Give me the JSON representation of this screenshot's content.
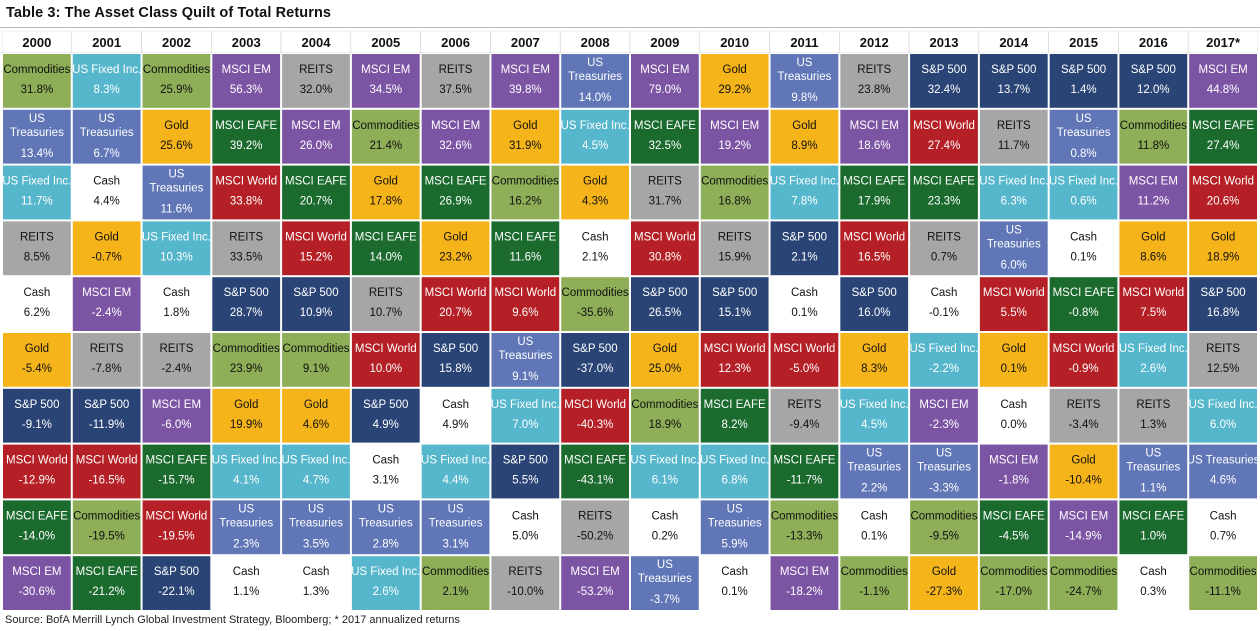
{
  "title": "Table 3: The Asset Class Quilt of Total Returns",
  "source": "Source: BofA Merrill Lynch Global Investment Strategy, Bloomberg; * 2017 annualized returns",
  "colors": {
    "Commodities": "#8eae58",
    "US Fixed Inc.": "#56b6cc",
    "US Treasuries": "#6076b7",
    "Cash": "#ffffff",
    "REITS": "#a6a6a6",
    "Gold": "#f5b41a",
    "S&P 500": "#2a4476",
    "MSCI World": "#b52026",
    "MSCI EAFE": "#1b6a2e",
    "MSCI EM": "#7c54a4"
  },
  "chart_data": {
    "type": "table",
    "title": "Table 3: The Asset Class Quilt of Total Returns",
    "columns": [
      {
        "year": "2000",
        "cells": [
          {
            "name": "Commodities",
            "value": "31.8%"
          },
          {
            "name": "US Treasuries",
            "value": "13.4%"
          },
          {
            "name": "US Fixed Inc.",
            "value": "11.7%"
          },
          {
            "name": "REITS",
            "value": "8.5%"
          },
          {
            "name": "Cash",
            "value": "6.2%"
          },
          {
            "name": "Gold",
            "value": "-5.4%"
          },
          {
            "name": "S&P 500",
            "value": "-9.1%"
          },
          {
            "name": "MSCI World",
            "value": "-12.9%"
          },
          {
            "name": "MSCI EAFE",
            "value": "-14.0%"
          },
          {
            "name": "MSCI EM",
            "value": "-30.6%"
          }
        ]
      },
      {
        "year": "2001",
        "cells": [
          {
            "name": "US Fixed Inc.",
            "value": "8.3%"
          },
          {
            "name": "US Treasuries",
            "value": "6.7%"
          },
          {
            "name": "Cash",
            "value": "4.4%"
          },
          {
            "name": "Gold",
            "value": "-0.7%"
          },
          {
            "name": "MSCI EM",
            "value": "-2.4%"
          },
          {
            "name": "REITS",
            "value": "-7.8%"
          },
          {
            "name": "S&P 500",
            "value": "-11.9%"
          },
          {
            "name": "MSCI World",
            "value": "-16.5%"
          },
          {
            "name": "Commodities",
            "value": "-19.5%"
          },
          {
            "name": "MSCI EAFE",
            "value": "-21.2%"
          }
        ]
      },
      {
        "year": "2002",
        "cells": [
          {
            "name": "Commodities",
            "value": "25.9%"
          },
          {
            "name": "Gold",
            "value": "25.6%"
          },
          {
            "name": "US Treasuries",
            "value": "11.6%"
          },
          {
            "name": "US Fixed Inc.",
            "value": "10.3%"
          },
          {
            "name": "Cash",
            "value": "1.8%"
          },
          {
            "name": "REITS",
            "value": "-2.4%"
          },
          {
            "name": "MSCI EM",
            "value": "-6.0%"
          },
          {
            "name": "MSCI EAFE",
            "value": "-15.7%"
          },
          {
            "name": "MSCI World",
            "value": "-19.5%"
          },
          {
            "name": "S&P 500",
            "value": "-22.1%"
          }
        ]
      },
      {
        "year": "2003",
        "cells": [
          {
            "name": "MSCI EM",
            "value": "56.3%"
          },
          {
            "name": "MSCI EAFE",
            "value": "39.2%"
          },
          {
            "name": "MSCI World",
            "value": "33.8%"
          },
          {
            "name": "REITS",
            "value": "33.5%"
          },
          {
            "name": "S&P 500",
            "value": "28.7%"
          },
          {
            "name": "Commodities",
            "value": "23.9%"
          },
          {
            "name": "Gold",
            "value": "19.9%"
          },
          {
            "name": "US Fixed Inc.",
            "value": "4.1%"
          },
          {
            "name": "US Treasuries",
            "value": "2.3%"
          },
          {
            "name": "Cash",
            "value": "1.1%"
          }
        ]
      },
      {
        "year": "2004",
        "cells": [
          {
            "name": "REITS",
            "value": "32.0%"
          },
          {
            "name": "MSCI EM",
            "value": "26.0%"
          },
          {
            "name": "MSCI EAFE",
            "value": "20.7%"
          },
          {
            "name": "MSCI World",
            "value": "15.2%"
          },
          {
            "name": "S&P 500",
            "value": "10.9%"
          },
          {
            "name": "Commodities",
            "value": "9.1%"
          },
          {
            "name": "Gold",
            "value": "4.6%"
          },
          {
            "name": "US Fixed Inc.",
            "value": "4.7%"
          },
          {
            "name": "US Treasuries",
            "value": "3.5%"
          },
          {
            "name": "Cash",
            "value": "1.3%"
          }
        ]
      },
      {
        "year": "2005",
        "cells": [
          {
            "name": "MSCI EM",
            "value": "34.5%"
          },
          {
            "name": "Commodities",
            "value": "21.4%"
          },
          {
            "name": "Gold",
            "value": "17.8%"
          },
          {
            "name": "MSCI EAFE",
            "value": "14.0%"
          },
          {
            "name": "REITS",
            "value": "10.7%"
          },
          {
            "name": "MSCI World",
            "value": "10.0%"
          },
          {
            "name": "S&P 500",
            "value": "4.9%"
          },
          {
            "name": "Cash",
            "value": "3.1%"
          },
          {
            "name": "US Treasuries",
            "value": "2.8%"
          },
          {
            "name": "US Fixed Inc.",
            "value": "2.6%"
          }
        ]
      },
      {
        "year": "2006",
        "cells": [
          {
            "name": "REITS",
            "value": "37.5%"
          },
          {
            "name": "MSCI EM",
            "value": "32.6%"
          },
          {
            "name": "MSCI EAFE",
            "value": "26.9%"
          },
          {
            "name": "Gold",
            "value": "23.2%"
          },
          {
            "name": "MSCI World",
            "value": "20.7%"
          },
          {
            "name": "S&P 500",
            "value": "15.8%"
          },
          {
            "name": "Cash",
            "value": "4.9%"
          },
          {
            "name": "US Fixed Inc.",
            "value": "4.4%"
          },
          {
            "name": "US Treasuries",
            "value": "3.1%"
          },
          {
            "name": "Commodities",
            "value": "2.1%"
          }
        ]
      },
      {
        "year": "2007",
        "cells": [
          {
            "name": "MSCI EM",
            "value": "39.8%"
          },
          {
            "name": "Gold",
            "value": "31.9%"
          },
          {
            "name": "Commodities",
            "value": "16.2%"
          },
          {
            "name": "MSCI EAFE",
            "value": "11.6%"
          },
          {
            "name": "MSCI World",
            "value": "9.6%"
          },
          {
            "name": "US Treasuries",
            "value": "9.1%"
          },
          {
            "name": "US Fixed Inc.",
            "value": "7.0%"
          },
          {
            "name": "S&P 500",
            "value": "5.5%"
          },
          {
            "name": "Cash",
            "value": "5.0%"
          },
          {
            "name": "REITS",
            "value": "-10.0%"
          }
        ]
      },
      {
        "year": "2008",
        "cells": [
          {
            "name": "US Treasuries",
            "value": "14.0%"
          },
          {
            "name": "US Fixed Inc.",
            "value": "4.5%"
          },
          {
            "name": "Gold",
            "value": "4.3%"
          },
          {
            "name": "Cash",
            "value": "2.1%"
          },
          {
            "name": "Commodities",
            "value": "-35.6%"
          },
          {
            "name": "S&P 500",
            "value": "-37.0%"
          },
          {
            "name": "MSCI World",
            "value": "-40.3%"
          },
          {
            "name": "MSCI EAFE",
            "value": "-43.1%"
          },
          {
            "name": "REITS",
            "value": "-50.2%"
          },
          {
            "name": "MSCI EM",
            "value": "-53.2%"
          }
        ]
      },
      {
        "year": "2009",
        "cells": [
          {
            "name": "MSCI EM",
            "value": "79.0%"
          },
          {
            "name": "MSCI EAFE",
            "value": "32.5%"
          },
          {
            "name": "REITS",
            "value": "31.7%"
          },
          {
            "name": "MSCI World",
            "value": "30.8%"
          },
          {
            "name": "S&P 500",
            "value": "26.5%"
          },
          {
            "name": "Gold",
            "value": "25.0%"
          },
          {
            "name": "Commodities",
            "value": "18.9%"
          },
          {
            "name": "US Fixed Inc.",
            "value": "6.1%"
          },
          {
            "name": "Cash",
            "value": "0.2%"
          },
          {
            "name": "US Treasuries",
            "value": "-3.7%"
          }
        ]
      },
      {
        "year": "2010",
        "cells": [
          {
            "name": "Gold",
            "value": "29.2%"
          },
          {
            "name": "MSCI EM",
            "value": "19.2%"
          },
          {
            "name": "Commodities",
            "value": "16.8%"
          },
          {
            "name": "REITS",
            "value": "15.9%"
          },
          {
            "name": "S&P 500",
            "value": "15.1%"
          },
          {
            "name": "MSCI World",
            "value": "12.3%"
          },
          {
            "name": "MSCI EAFE",
            "value": "8.2%"
          },
          {
            "name": "US Fixed Inc.",
            "value": "6.8%"
          },
          {
            "name": "US Treasuries",
            "value": "5.9%"
          },
          {
            "name": "Cash",
            "value": "0.1%"
          }
        ]
      },
      {
        "year": "2011",
        "cells": [
          {
            "name": "US Treasuries",
            "value": "9.8%"
          },
          {
            "name": "Gold",
            "value": "8.9%"
          },
          {
            "name": "US Fixed Inc.",
            "value": "7.8%"
          },
          {
            "name": "S&P 500",
            "value": "2.1%"
          },
          {
            "name": "Cash",
            "value": "0.1%"
          },
          {
            "name": "MSCI World",
            "value": "-5.0%"
          },
          {
            "name": "REITS",
            "value": "-9.4%"
          },
          {
            "name": "MSCI EAFE",
            "value": "-11.7%"
          },
          {
            "name": "Commodities",
            "value": "-13.3%"
          },
          {
            "name": "MSCI EM",
            "value": "-18.2%"
          }
        ]
      },
      {
        "year": "2012",
        "cells": [
          {
            "name": "REITS",
            "value": "23.8%"
          },
          {
            "name": "MSCI EM",
            "value": "18.6%"
          },
          {
            "name": "MSCI EAFE",
            "value": "17.9%"
          },
          {
            "name": "MSCI World",
            "value": "16.5%"
          },
          {
            "name": "S&P 500",
            "value": "16.0%"
          },
          {
            "name": "Gold",
            "value": "8.3%"
          },
          {
            "name": "US Fixed Inc.",
            "value": "4.5%"
          },
          {
            "name": "US Treasuries",
            "value": "2.2%"
          },
          {
            "name": "Cash",
            "value": "0.1%"
          },
          {
            "name": "Commodities",
            "value": "-1.1%"
          }
        ]
      },
      {
        "year": "2013",
        "cells": [
          {
            "name": "S&P 500",
            "value": "32.4%"
          },
          {
            "name": "MSCI World",
            "value": "27.4%"
          },
          {
            "name": "MSCI EAFE",
            "value": "23.3%"
          },
          {
            "name": "REITS",
            "value": "0.7%"
          },
          {
            "name": "Cash",
            "value": "-0.1%"
          },
          {
            "name": "US Fixed Inc.",
            "value": "-2.2%"
          },
          {
            "name": "MSCI EM",
            "value": "-2.3%"
          },
          {
            "name": "US Treasuries",
            "value": "-3.3%"
          },
          {
            "name": "Commodities",
            "value": "-9.5%"
          },
          {
            "name": "Gold",
            "value": "-27.3%"
          }
        ]
      },
      {
        "year": "2014",
        "cells": [
          {
            "name": "S&P 500",
            "value": "13.7%"
          },
          {
            "name": "REITS",
            "value": "11.7%"
          },
          {
            "name": "US Fixed Inc.",
            "value": "6.3%"
          },
          {
            "name": "US Treasuries",
            "value": "6.0%"
          },
          {
            "name": "MSCI World",
            "value": "5.5%"
          },
          {
            "name": "Gold",
            "value": "0.1%"
          },
          {
            "name": "Cash",
            "value": "0.0%"
          },
          {
            "name": "MSCI EM",
            "value": "-1.8%"
          },
          {
            "name": "MSCI EAFE",
            "value": "-4.5%"
          },
          {
            "name": "Commodities",
            "value": "-17.0%"
          }
        ]
      },
      {
        "year": "2015",
        "cells": [
          {
            "name": "S&P 500",
            "value": "1.4%"
          },
          {
            "name": "US Treasuries",
            "value": "0.8%"
          },
          {
            "name": "US Fixed Inc.",
            "value": "0.6%"
          },
          {
            "name": "Cash",
            "value": "0.1%"
          },
          {
            "name": "MSCI EAFE",
            "value": "-0.8%"
          },
          {
            "name": "MSCI World",
            "value": "-0.9%"
          },
          {
            "name": "REITS",
            "value": "-3.4%"
          },
          {
            "name": "Gold",
            "value": "-10.4%"
          },
          {
            "name": "MSCI EM",
            "value": "-14.9%"
          },
          {
            "name": "Commodities",
            "value": "-24.7%"
          }
        ]
      },
      {
        "year": "2016",
        "cells": [
          {
            "name": "S&P 500",
            "value": "12.0%"
          },
          {
            "name": "Commodities",
            "value": "11.8%"
          },
          {
            "name": "MSCI EM",
            "value": "11.2%"
          },
          {
            "name": "Gold",
            "value": "8.6%"
          },
          {
            "name": "MSCI World",
            "value": "7.5%"
          },
          {
            "name": "US Fixed Inc.",
            "value": "2.6%"
          },
          {
            "name": "REITS",
            "value": "1.3%"
          },
          {
            "name": "US Treasuries",
            "value": "1.1%"
          },
          {
            "name": "MSCI EAFE",
            "value": "1.0%"
          },
          {
            "name": "Cash",
            "value": "0.3%"
          }
        ]
      },
      {
        "year": "2017*",
        "cells": [
          {
            "name": "MSCI EM",
            "value": "44.8%"
          },
          {
            "name": "MSCI EAFE",
            "value": "27.4%"
          },
          {
            "name": "MSCI World",
            "value": "20.6%"
          },
          {
            "name": "Gold",
            "value": "18.9%"
          },
          {
            "name": "S&P 500",
            "value": "16.8%"
          },
          {
            "name": "REITS",
            "value": "12.5%"
          },
          {
            "name": "US Fixed Inc.",
            "value": "6.0%"
          },
          {
            "name": "US Treasuries",
            "value": "4.6%"
          },
          {
            "name": "Cash",
            "value": "0.7%"
          },
          {
            "name": "Commodities",
            "value": "-11.1%"
          }
        ]
      }
    ]
  }
}
